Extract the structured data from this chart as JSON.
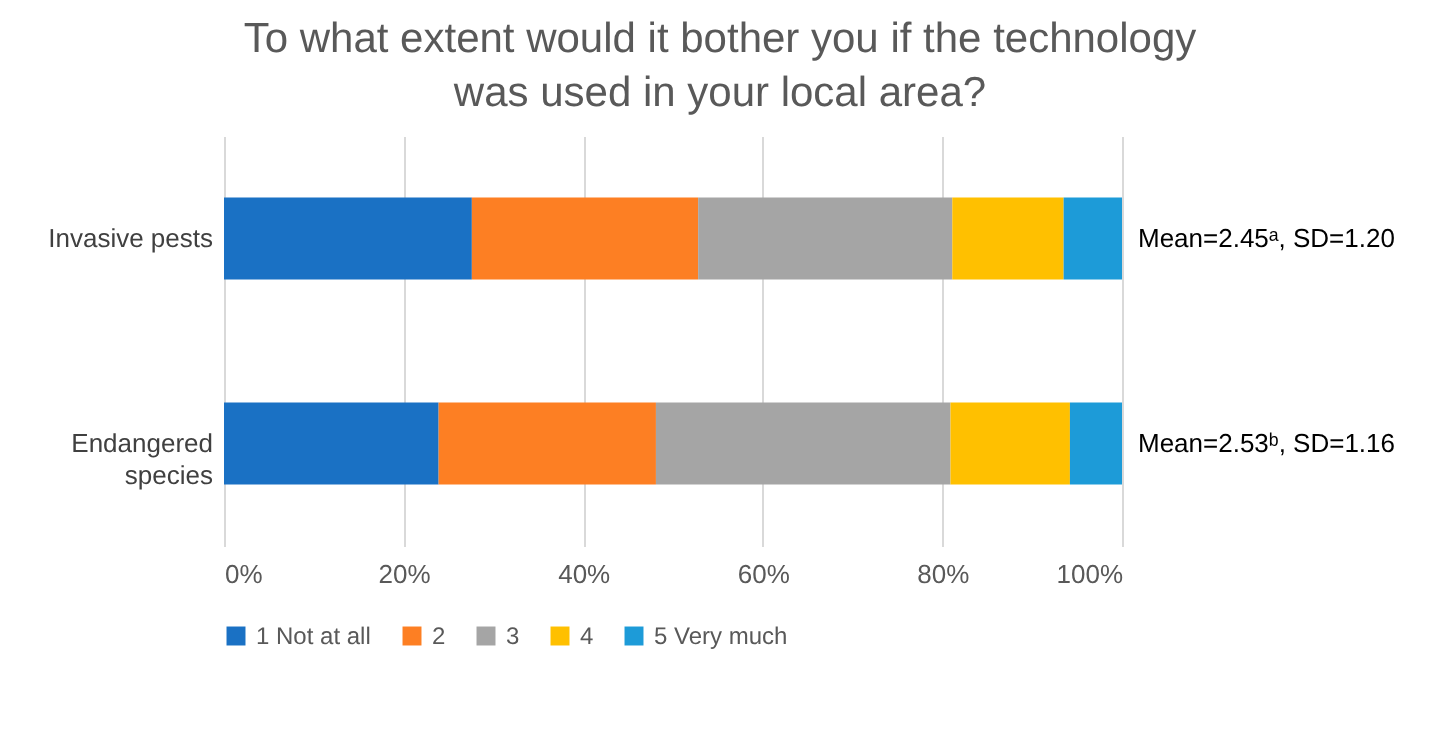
{
  "chart_data": {
    "type": "bar",
    "orientation": "horizontal",
    "stacked": true,
    "title": "To what extent would it bother you if the technology was used in your local area?",
    "categories": [
      "Invasive pests",
      "Endangered species"
    ],
    "series": [
      {
        "name": "1 Not at all",
        "color": "#1a71c4",
        "values": [
          27.6,
          23.9
        ]
      },
      {
        "name": "2",
        "color": "#fd7f23",
        "values": [
          25.2,
          24.2
        ]
      },
      {
        "name": "3",
        "color": "#a5a5a5",
        "values": [
          28.3,
          32.8
        ]
      },
      {
        "name": "4",
        "color": "#ffc000",
        "values": [
          12.4,
          13.3
        ]
      },
      {
        "name": "5 Very much",
        "color": "#1d9bd8",
        "values": [
          6.5,
          5.8
        ]
      }
    ],
    "xlim": [
      0,
      100
    ],
    "xticks": [
      {
        "value": 0,
        "label": "0%"
      },
      {
        "value": 20,
        "label": "20%"
      },
      {
        "value": 40,
        "label": "40%"
      },
      {
        "value": 60,
        "label": "60%"
      },
      {
        "value": 80,
        "label": "80%"
      },
      {
        "value": 100,
        "label": "100%"
      }
    ],
    "grid": "x",
    "legend": "bottom",
    "annotations": [
      {
        "text": "Mean=2.45ᵃ, SD=1.20",
        "x": 100,
        "y": "Invasive pests"
      },
      {
        "text": "Mean=2.53ᵇ, SD=1.16",
        "x": 100,
        "y": "Endangered species"
      }
    ]
  }
}
